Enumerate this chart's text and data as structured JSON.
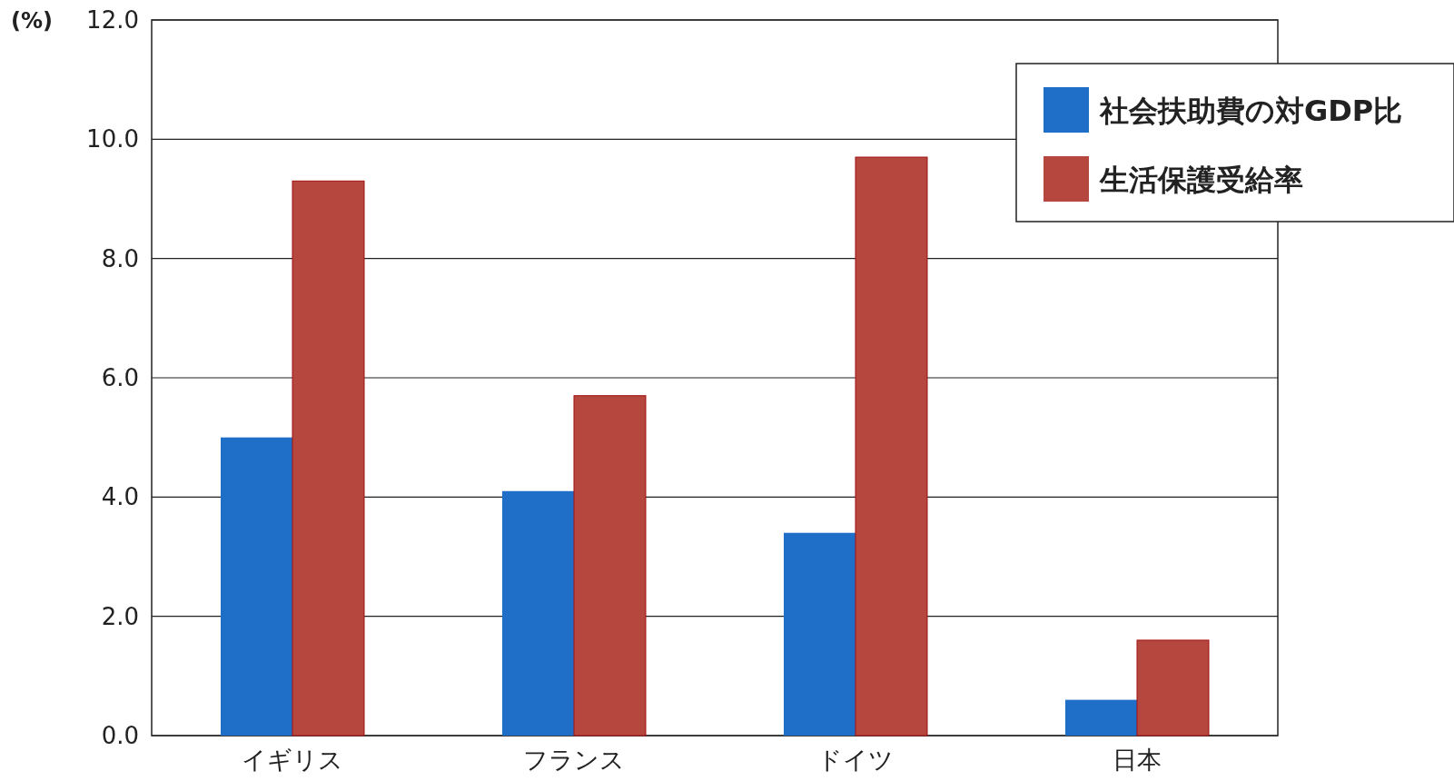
{
  "chart_data": {
    "type": "bar",
    "ylabel": "(%)",
    "categories": [
      "イギリス",
      "フランス",
      "ドイツ",
      "日本"
    ],
    "series": [
      {
        "name": "社会扶助費の対GDP比",
        "color": "#1f6fc8",
        "values": [
          5.0,
          4.1,
          3.4,
          0.6
        ]
      },
      {
        "name": "生活保護受給率",
        "color": "#b5473f",
        "values": [
          9.3,
          5.7,
          9.7,
          1.6
        ]
      }
    ],
    "ylim": [
      0,
      12
    ],
    "yticks": [
      {
        "value": 0,
        "label": "0.0"
      },
      {
        "value": 2,
        "label": "2.0"
      },
      {
        "value": 4,
        "label": "4.0"
      },
      {
        "value": 6,
        "label": "6.0"
      },
      {
        "value": 8,
        "label": "8.0"
      },
      {
        "value": 10,
        "label": "10.0"
      },
      {
        "value": 12,
        "label": "12.0"
      }
    ],
    "grid": "y",
    "legend": "top right"
  }
}
